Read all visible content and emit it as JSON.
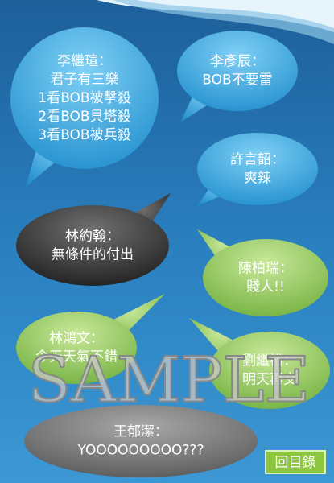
{
  "bubbles": [
    {
      "speaker": "李繼瑄：",
      "lines": [
        "君子有三樂",
        "1看BOB被擊殺",
        "2看BOB貝塔殺",
        "3看BOB被兵殺"
      ]
    },
    {
      "speaker": "李彥辰：",
      "lines": [
        "BOB不要雷"
      ]
    },
    {
      "speaker": "許言韶：",
      "lines": [
        "爽辣"
      ]
    },
    {
      "speaker": "林約翰：",
      "lines": [
        "無條件的付出"
      ]
    },
    {
      "speaker": "陳柏瑞：",
      "lines": [
        "賤人!!"
      ]
    },
    {
      "speaker": "林鴻文：",
      "lines": [
        "今天天氣不錯"
      ]
    },
    {
      "speaker": "劉繼裕：",
      "lines": [
        "明天再交"
      ]
    },
    {
      "speaker": "王郁潔：",
      "lines": [
        "YOOOOOOOOO???"
      ]
    }
  ],
  "watermark": "SAMPLE",
  "button": "回目錄"
}
